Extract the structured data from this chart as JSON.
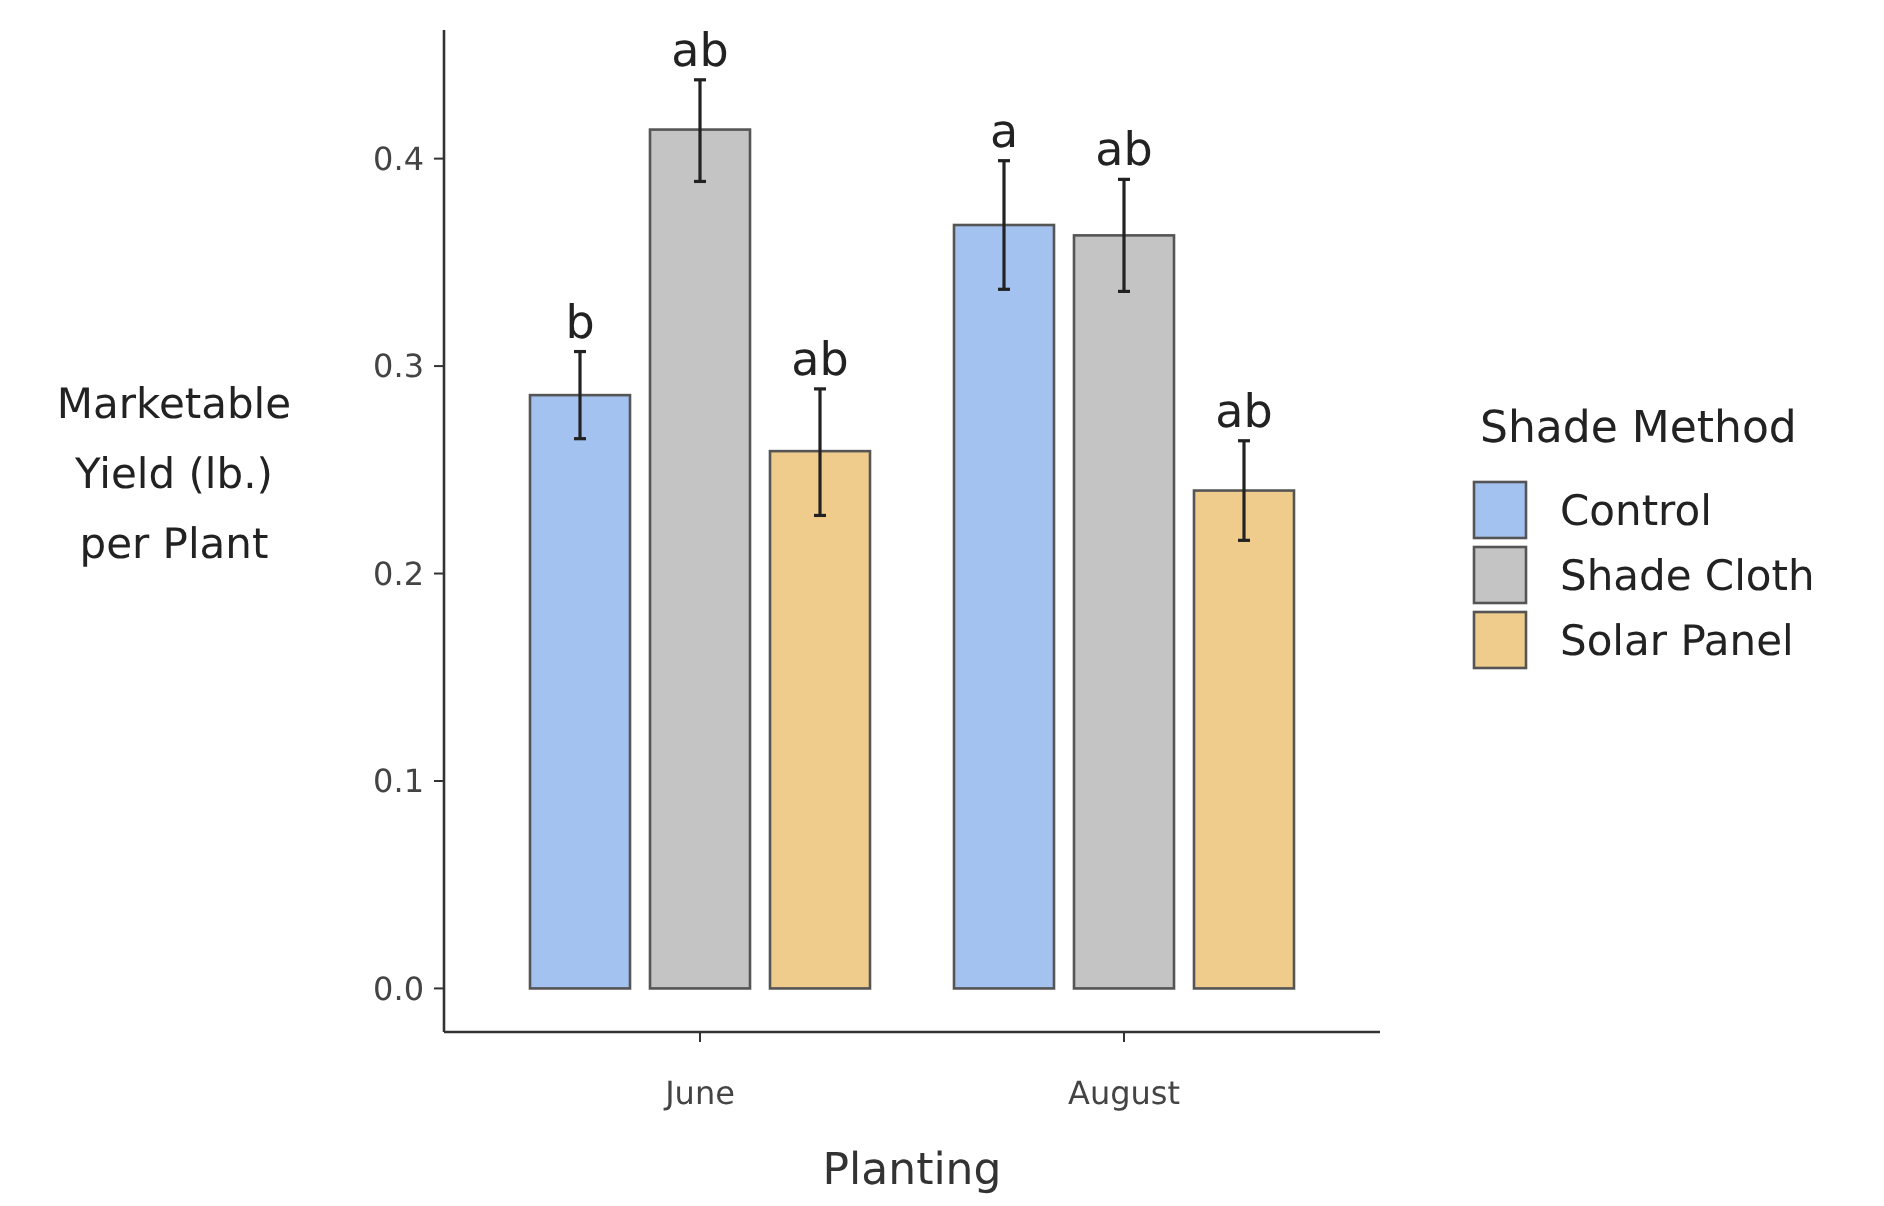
{
  "chart_data": {
    "type": "bar",
    "xlabel": "Planting",
    "ylabel": "Marketable Yield (lb.) per Plant",
    "legend_title": "Shade Method",
    "legend": "right",
    "grid": false,
    "categories": [
      "June",
      "August"
    ],
    "ylim": [
      -0.021,
      0.462
    ],
    "yticks": [
      {
        "value": 0,
        "label": "0.0"
      },
      0.1,
      0.2,
      0.3,
      0.4
    ],
    "series": [
      {
        "name": "Control",
        "color": "#a4c2f0",
        "values": [
          0.286,
          0.368
        ],
        "errors": [
          [
            0.265,
            0.307
          ],
          [
            0.337,
            0.399
          ]
        ],
        "value_labels": [
          "b",
          "a"
        ]
      },
      {
        "name": "Shade Cloth",
        "color": "#c4c4c4",
        "values": [
          0.414,
          0.363
        ],
        "errors": [
          [
            0.389,
            0.438
          ],
          [
            0.336,
            0.39
          ]
        ],
        "value_labels": [
          "ab",
          "ab"
        ]
      },
      {
        "name": "Solar Panel",
        "color": "#efcc8c",
        "values": [
          0.259,
          0.24
        ],
        "errors": [
          [
            0.228,
            0.289
          ],
          [
            0.216,
            0.264
          ]
        ],
        "value_labels": [
          "ab",
          "ab"
        ]
      }
    ]
  }
}
